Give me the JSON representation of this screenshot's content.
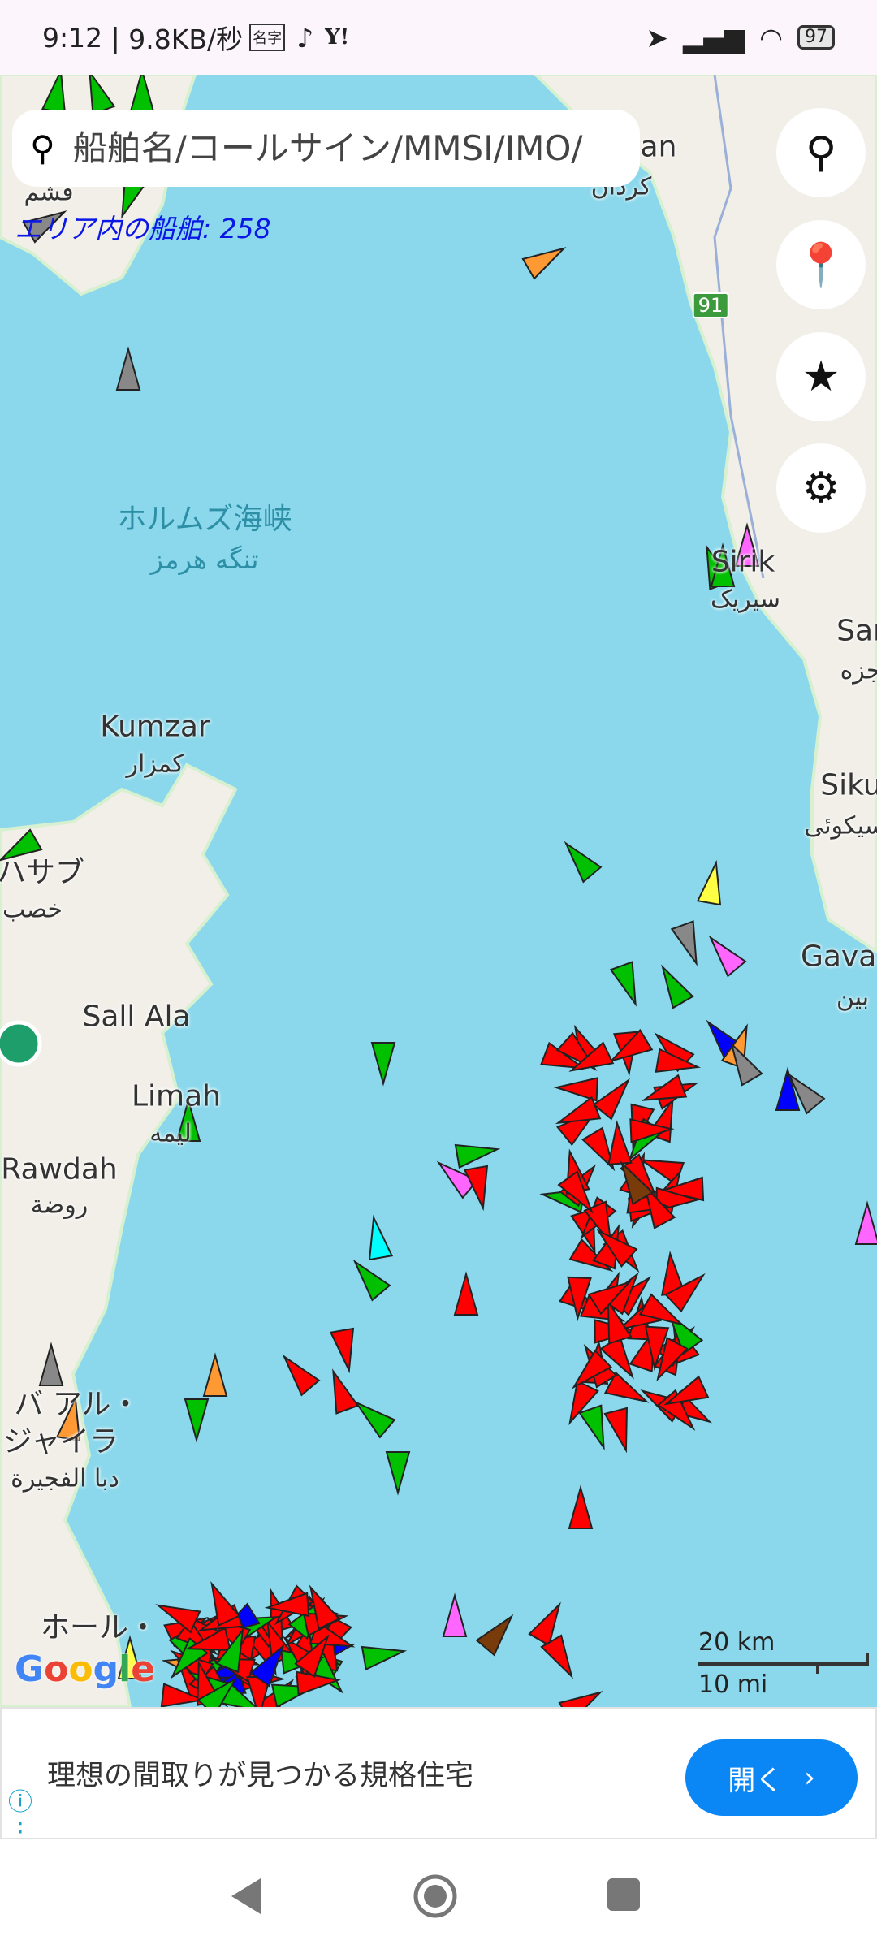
{
  "status_bar": {
    "time": "9:12",
    "network_speed": "9.8KB/秒",
    "app_icons": [
      "name-card-icon",
      "tiktok-icon",
      "yahoo-icon"
    ],
    "battery": "97"
  },
  "search": {
    "placeholder": "船舶名/コールサイン/MMSI/IMO/",
    "value": ""
  },
  "ship_count": "エリア内の船舶: 258",
  "map_buttons": [
    "location-pin-icon",
    "pin-drop-icon",
    "star-icon",
    "gear-icon"
  ],
  "map_labels": {
    "strait_ja": "ホルムズ海峡",
    "strait_fa": "تنگه هرمز",
    "kumzar": "Kumzar",
    "kumzar_ar": "كمزار",
    "khasab_ja": "ハサブ",
    "khasab_ar": "خصب",
    "sall_ala": "Sall Ala",
    "limah": "Limah",
    "limah_ar": "ليمه",
    "rawdah": "Rawdah",
    "rawdah_ar": "روضة",
    "dibba_ja_1": "バ アル・",
    "dibba_ja_2": "ジャイラ",
    "dibba_ar": "دبا الفجيرة",
    "khor_ja": "ホール・",
    "qeshm_fa": "قشم",
    "kordan": "an",
    "kordan_fa": "کردان",
    "sirik": "Sirik",
    "sirik_fa": "سیریک",
    "sar": "Sar",
    "sar_fa": "جزه",
    "siku": "Siku",
    "siku_fa": "سیکوئی",
    "gavar": "Gavar",
    "gavar_fa": "بین",
    "road": "91"
  },
  "scale": {
    "km": "20 km",
    "mi": "10 mi"
  },
  "attribution": "Google",
  "ad": {
    "text": "理想の間取りが見つかる規格住宅",
    "button": "開く"
  },
  "colors": {
    "water": "#8bd8ec",
    "land": "#f2efe9",
    "ship_cargo": "#00c000",
    "ship_tanker": "#ff0000",
    "ship_passenger": "#0000ff",
    "ship_other": "#888888",
    "ship_tug": "#00ffff",
    "ship_pleasure": "#ff66ff",
    "ship_hsc": "#ffff44",
    "ship_fishing": "#ff9933",
    "ship_unknown": "#7a3b0a",
    "count_text": "#0a17e6",
    "ad_button": "#0a86f5"
  }
}
